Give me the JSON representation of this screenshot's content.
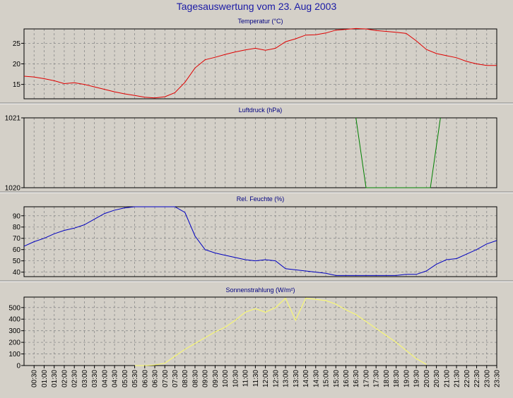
{
  "window": {
    "title": "Tagesauswertung vom 23. Aug 2003"
  },
  "chart_data": [
    {
      "type": "line",
      "title": "Temperatur (°C)",
      "color": "#e00000",
      "ylim": [
        11.5,
        28.5
      ],
      "yticks": [
        15,
        20,
        25
      ],
      "x": [
        0,
        0.5,
        1,
        1.5,
        2,
        2.5,
        3,
        3.5,
        4,
        4.5,
        5,
        5.5,
        6,
        6.5,
        7,
        7.5,
        8,
        8.5,
        9,
        9.5,
        10,
        10.5,
        11,
        11.5,
        12,
        12.5,
        13,
        13.5,
        14,
        14.5,
        15,
        15.5,
        16,
        16.5,
        17,
        17.5,
        18,
        18.5,
        19,
        19.5,
        20,
        20.5,
        21,
        21.5,
        22,
        22.5,
        23,
        23.5
      ],
      "values": [
        17,
        16.8,
        16.4,
        15.9,
        15.2,
        15.4,
        15.0,
        14.4,
        13.8,
        13.2,
        12.7,
        12.3,
        11.9,
        11.7,
        12.0,
        13.0,
        15.5,
        19.0,
        21.0,
        21.6,
        22.3,
        22.9,
        23.4,
        23.8,
        23.3,
        23.8,
        25.4,
        26.1,
        27.0,
        27.1,
        27.5,
        28.2,
        28.4,
        28.6,
        28.5,
        28.1,
        27.9,
        27.7,
        27.4,
        25.6,
        23.5,
        22.5,
        22.0,
        21.5,
        20.6,
        20.0,
        19.6,
        19.6
      ]
    },
    {
      "type": "line",
      "title": "Luftdruck (hPa)",
      "color": "#008000",
      "ylim": [
        1020,
        1021
      ],
      "yticks": [
        1020,
        1021
      ],
      "x": [
        16.5,
        17.0,
        20.2,
        20.7
      ],
      "values": [
        1021,
        1020,
        1020,
        1021
      ]
    },
    {
      "type": "line",
      "title": "Rel. Feuchte (%)",
      "color": "#0000c0",
      "ylim": [
        36,
        98
      ],
      "yticks": [
        40,
        50,
        60,
        70,
        80,
        90
      ],
      "x": [
        0,
        0.5,
        1,
        1.5,
        2,
        2.5,
        3,
        3.5,
        4,
        4.5,
        5,
        5.5,
        6,
        6.5,
        7,
        7.5,
        8,
        8.5,
        9,
        9.5,
        10,
        10.5,
        11,
        11.5,
        12,
        12.5,
        13,
        13.5,
        14,
        14.5,
        15,
        15.5,
        16,
        16.5,
        17,
        17.5,
        18,
        18.5,
        19,
        19.5,
        20,
        20.5,
        21,
        21.5,
        22,
        22.5,
        23,
        23.5
      ],
      "values": [
        63,
        67,
        70,
        74,
        77,
        79,
        82,
        87,
        92,
        95,
        97,
        98,
        98,
        98,
        98,
        98,
        93,
        72,
        60,
        57,
        55,
        53,
        51,
        50,
        51,
        50,
        43,
        42,
        41,
        40,
        39,
        37,
        37,
        37,
        37,
        37,
        37,
        37,
        38,
        38,
        41,
        47,
        51,
        52,
        56,
        60,
        65,
        68
      ]
    },
    {
      "type": "line",
      "title": "Sonnenstrahlung (W/m²)",
      "color": "#ffff66",
      "ylim": [
        0,
        590
      ],
      "yticks": [
        0,
        100,
        200,
        300,
        400,
        500
      ],
      "x": [
        5.5,
        6,
        6.5,
        7,
        7.5,
        8,
        8.5,
        9,
        9.5,
        10,
        10.5,
        11,
        11.5,
        12,
        12.5,
        13,
        13.5,
        14,
        14.5,
        15,
        15.5,
        16,
        16.5,
        17,
        17.5,
        18,
        18.5,
        19,
        19.5,
        20
      ],
      "values": [
        0,
        0,
        5,
        20,
        80,
        140,
        190,
        240,
        290,
        330,
        390,
        460,
        490,
        460,
        500,
        580,
        390,
        580,
        570,
        560,
        530,
        480,
        440,
        380,
        320,
        260,
        200,
        130,
        60,
        10
      ]
    }
  ],
  "x_axis": {
    "tick_labels": [
      "00:30",
      "01:00",
      "01:30",
      "02:00",
      "02:30",
      "03:00",
      "03:30",
      "04:00",
      "04:30",
      "05:00",
      "05:30",
      "06:00",
      "06:30",
      "07:00",
      "07:30",
      "08:00",
      "08:30",
      "09:00",
      "09:30",
      "10:00",
      "10:30",
      "11:00",
      "11:30",
      "12:00",
      "12:30",
      "13:00",
      "13:30",
      "14:00",
      "14:30",
      "15:00",
      "15:30",
      "16:00",
      "16:30",
      "17:00",
      "17:30",
      "18:00",
      "18:30",
      "19:00",
      "19:30",
      "20:00",
      "20:30",
      "21:00",
      "21:30",
      "22:00",
      "22:30",
      "23:00",
      "23:30"
    ]
  }
}
